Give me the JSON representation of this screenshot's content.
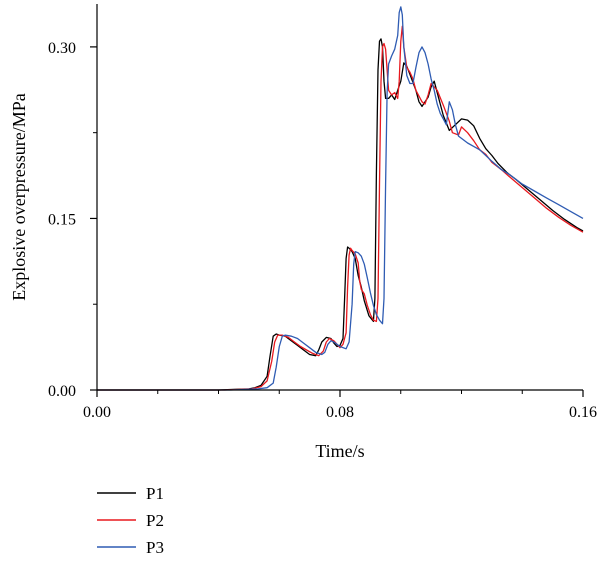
{
  "chart_data": {
    "type": "line",
    "title": "",
    "xlabel": "Time/s",
    "ylabel": "Explosive overpressure/MPa",
    "xlim": [
      0,
      0.16
    ],
    "ylim": [
      0,
      0.3375
    ],
    "x_ticks": [
      0,
      0.08,
      0.16
    ],
    "x_tick_labels": [
      "0.00",
      "0.08",
      "0.16"
    ],
    "x_minor_ticks": [
      0.02,
      0.04,
      0.06,
      0.1,
      0.12,
      0.14
    ],
    "y_ticks": [
      0,
      0.15,
      0.3
    ],
    "y_tick_labels": [
      "0.00",
      "0.15",
      "0.30"
    ],
    "y_minor_ticks": [
      0.075,
      0.225
    ],
    "grid": false,
    "legend_position": "below",
    "series": [
      {
        "name": "P1",
        "color": "#000000",
        "points": [
          [
            0,
            0
          ],
          [
            0.03,
            0
          ],
          [
            0.04,
            0
          ],
          [
            0.045,
            0.0005
          ],
          [
            0.05,
            0.001
          ],
          [
            0.052,
            0.002
          ],
          [
            0.054,
            0.004
          ],
          [
            0.056,
            0.012
          ],
          [
            0.057,
            0.03
          ],
          [
            0.058,
            0.047
          ],
          [
            0.059,
            0.049
          ],
          [
            0.06,
            0.048
          ],
          [
            0.062,
            0.047
          ],
          [
            0.064,
            0.043
          ],
          [
            0.066,
            0.039
          ],
          [
            0.068,
            0.035
          ],
          [
            0.07,
            0.031
          ],
          [
            0.072,
            0.03
          ],
          [
            0.073,
            0.035
          ],
          [
            0.074,
            0.042
          ],
          [
            0.0755,
            0.046
          ],
          [
            0.077,
            0.045
          ],
          [
            0.078,
            0.041
          ],
          [
            0.079,
            0.038
          ],
          [
            0.08,
            0.039
          ],
          [
            0.081,
            0.045
          ],
          [
            0.0815,
            0.08
          ],
          [
            0.082,
            0.115
          ],
          [
            0.0825,
            0.125
          ],
          [
            0.083,
            0.124
          ],
          [
            0.084,
            0.121
          ],
          [
            0.085,
            0.115
          ],
          [
            0.086,
            0.1
          ],
          [
            0.087,
            0.09
          ],
          [
            0.088,
            0.078
          ],
          [
            0.0895,
            0.065
          ],
          [
            0.091,
            0.06
          ],
          [
            0.0915,
            0.08
          ],
          [
            0.092,
            0.19
          ],
          [
            0.0925,
            0.28
          ],
          [
            0.093,
            0.305
          ],
          [
            0.0935,
            0.307
          ],
          [
            0.094,
            0.3
          ],
          [
            0.0945,
            0.27
          ],
          [
            0.095,
            0.255
          ],
          [
            0.096,
            0.255
          ],
          [
            0.097,
            0.258
          ],
          [
            0.098,
            0.254
          ],
          [
            0.099,
            0.262
          ],
          [
            0.1,
            0.27
          ],
          [
            0.101,
            0.286
          ],
          [
            0.102,
            0.283
          ],
          [
            0.103,
            0.276
          ],
          [
            0.105,
            0.262
          ],
          [
            0.106,
            0.252
          ],
          [
            0.107,
            0.248
          ],
          [
            0.109,
            0.256
          ],
          [
            0.11,
            0.265
          ],
          [
            0.111,
            0.27
          ],
          [
            0.112,
            0.26
          ],
          [
            0.114,
            0.24
          ],
          [
            0.116,
            0.227
          ],
          [
            0.118,
            0.232
          ],
          [
            0.12,
            0.237
          ],
          [
            0.122,
            0.236
          ],
          [
            0.124,
            0.231
          ],
          [
            0.126,
            0.22
          ],
          [
            0.128,
            0.211
          ],
          [
            0.13,
            0.205
          ],
          [
            0.132,
            0.198
          ],
          [
            0.135,
            0.19
          ],
          [
            0.138,
            0.184
          ],
          [
            0.142,
            0.175
          ],
          [
            0.146,
            0.166
          ],
          [
            0.15,
            0.157
          ],
          [
            0.154,
            0.149
          ],
          [
            0.158,
            0.142
          ],
          [
            0.16,
            0.139
          ]
        ]
      },
      {
        "name": "P2",
        "color": "#e8191f",
        "points": [
          [
            0,
            0
          ],
          [
            0.03,
            0
          ],
          [
            0.042,
            0
          ],
          [
            0.047,
            0.0005
          ],
          [
            0.051,
            0.001
          ],
          [
            0.054,
            0.003
          ],
          [
            0.056,
            0.008
          ],
          [
            0.0575,
            0.025
          ],
          [
            0.0585,
            0.042
          ],
          [
            0.0595,
            0.048
          ],
          [
            0.061,
            0.048
          ],
          [
            0.063,
            0.046
          ],
          [
            0.065,
            0.042
          ],
          [
            0.067,
            0.038
          ],
          [
            0.069,
            0.035
          ],
          [
            0.071,
            0.032
          ],
          [
            0.073,
            0.03
          ],
          [
            0.0745,
            0.034
          ],
          [
            0.0755,
            0.042
          ],
          [
            0.0765,
            0.045
          ],
          [
            0.078,
            0.043
          ],
          [
            0.079,
            0.04
          ],
          [
            0.08,
            0.037
          ],
          [
            0.081,
            0.04
          ],
          [
            0.082,
            0.05
          ],
          [
            0.0825,
            0.09
          ],
          [
            0.083,
            0.118
          ],
          [
            0.0835,
            0.124
          ],
          [
            0.084,
            0.122
          ],
          [
            0.085,
            0.119
          ],
          [
            0.086,
            0.111
          ],
          [
            0.0865,
            0.095
          ],
          [
            0.087,
            0.088
          ],
          [
            0.088,
            0.084
          ],
          [
            0.089,
            0.074
          ],
          [
            0.09,
            0.066
          ],
          [
            0.091,
            0.061
          ],
          [
            0.092,
            0.06
          ],
          [
            0.0925,
            0.08
          ],
          [
            0.093,
            0.18
          ],
          [
            0.0935,
            0.27
          ],
          [
            0.094,
            0.3
          ],
          [
            0.0945,
            0.303
          ],
          [
            0.095,
            0.298
          ],
          [
            0.0955,
            0.28
          ],
          [
            0.096,
            0.262
          ],
          [
            0.097,
            0.258
          ],
          [
            0.098,
            0.26
          ],
          [
            0.099,
            0.255
          ],
          [
            0.0995,
            0.27
          ],
          [
            0.1,
            0.305
          ],
          [
            0.1005,
            0.318
          ],
          [
            0.101,
            0.3
          ],
          [
            0.102,
            0.282
          ],
          [
            0.103,
            0.278
          ],
          [
            0.104,
            0.272
          ],
          [
            0.105,
            0.262
          ],
          [
            0.107,
            0.252
          ],
          [
            0.108,
            0.25
          ],
          [
            0.109,
            0.258
          ],
          [
            0.11,
            0.268
          ],
          [
            0.112,
            0.262
          ],
          [
            0.114,
            0.249
          ],
          [
            0.116,
            0.235
          ],
          [
            0.117,
            0.225
          ],
          [
            0.119,
            0.223
          ],
          [
            0.12,
            0.23
          ],
          [
            0.122,
            0.225
          ],
          [
            0.124,
            0.218
          ],
          [
            0.126,
            0.21
          ],
          [
            0.128,
            0.206
          ],
          [
            0.13,
            0.199
          ],
          [
            0.133,
            0.193
          ],
          [
            0.136,
            0.186
          ],
          [
            0.14,
            0.177
          ],
          [
            0.144,
            0.168
          ],
          [
            0.148,
            0.159
          ],
          [
            0.152,
            0.151
          ],
          [
            0.156,
            0.144
          ],
          [
            0.16,
            0.138
          ]
        ]
      },
      {
        "name": "P3",
        "color": "#2f5cb3",
        "points": [
          [
            0,
            0
          ],
          [
            0.03,
            0
          ],
          [
            0.044,
            0
          ],
          [
            0.049,
            0.0005
          ],
          [
            0.053,
            0.001
          ],
          [
            0.056,
            0.002
          ],
          [
            0.058,
            0.006
          ],
          [
            0.059,
            0.02
          ],
          [
            0.06,
            0.038
          ],
          [
            0.061,
            0.047
          ],
          [
            0.062,
            0.048
          ],
          [
            0.064,
            0.047
          ],
          [
            0.066,
            0.045
          ],
          [
            0.068,
            0.041
          ],
          [
            0.07,
            0.037
          ],
          [
            0.072,
            0.033
          ],
          [
            0.074,
            0.031
          ],
          [
            0.075,
            0.033
          ],
          [
            0.076,
            0.04
          ],
          [
            0.077,
            0.043
          ],
          [
            0.078,
            0.042
          ],
          [
            0.08,
            0.038
          ],
          [
            0.082,
            0.036
          ],
          [
            0.083,
            0.042
          ],
          [
            0.084,
            0.075
          ],
          [
            0.0845,
            0.11
          ],
          [
            0.085,
            0.121
          ],
          [
            0.086,
            0.12
          ],
          [
            0.087,
            0.117
          ],
          [
            0.088,
            0.11
          ],
          [
            0.089,
            0.098
          ],
          [
            0.09,
            0.085
          ],
          [
            0.091,
            0.074
          ],
          [
            0.092,
            0.066
          ],
          [
            0.093,
            0.061
          ],
          [
            0.094,
            0.058
          ],
          [
            0.0945,
            0.08
          ],
          [
            0.095,
            0.18
          ],
          [
            0.0955,
            0.26
          ],
          [
            0.096,
            0.285
          ],
          [
            0.097,
            0.292
          ],
          [
            0.098,
            0.298
          ],
          [
            0.099,
            0.31
          ],
          [
            0.0995,
            0.33
          ],
          [
            0.1,
            0.335
          ],
          [
            0.1005,
            0.328
          ],
          [
            0.101,
            0.3
          ],
          [
            0.102,
            0.275
          ],
          [
            0.103,
            0.268
          ],
          [
            0.104,
            0.268
          ],
          [
            0.105,
            0.282
          ],
          [
            0.106,
            0.295
          ],
          [
            0.107,
            0.3
          ],
          [
            0.108,
            0.295
          ],
          [
            0.109,
            0.285
          ],
          [
            0.11,
            0.272
          ],
          [
            0.111,
            0.262
          ],
          [
            0.112,
            0.25
          ],
          [
            0.113,
            0.242
          ],
          [
            0.114,
            0.237
          ],
          [
            0.115,
            0.232
          ],
          [
            0.116,
            0.252
          ],
          [
            0.117,
            0.245
          ],
          [
            0.118,
            0.232
          ],
          [
            0.119,
            0.222
          ],
          [
            0.12,
            0.22
          ],
          [
            0.122,
            0.216
          ],
          [
            0.124,
            0.213
          ],
          [
            0.126,
            0.21
          ],
          [
            0.128,
            0.205
          ],
          [
            0.13,
            0.2
          ],
          [
            0.133,
            0.193
          ],
          [
            0.136,
            0.188
          ],
          [
            0.14,
            0.18
          ],
          [
            0.144,
            0.174
          ],
          [
            0.148,
            0.168
          ],
          [
            0.152,
            0.162
          ],
          [
            0.156,
            0.156
          ],
          [
            0.16,
            0.15
          ]
        ]
      }
    ]
  }
}
